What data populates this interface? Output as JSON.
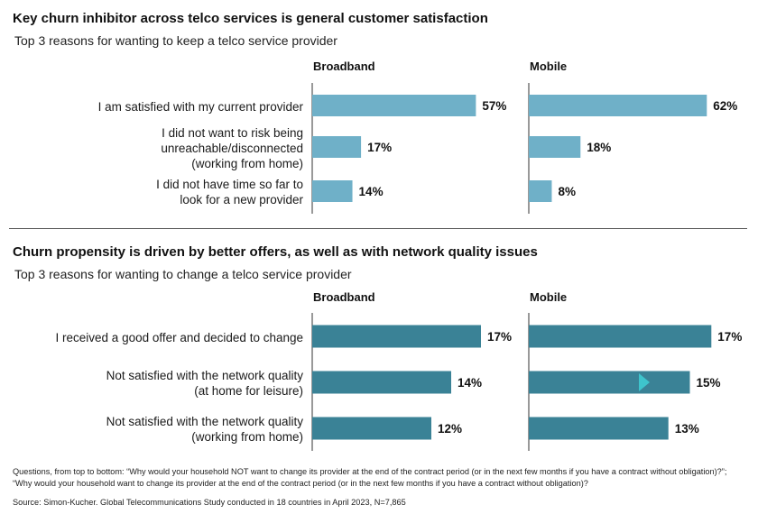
{
  "chart_data": [
    {
      "type": "bar",
      "orientation": "horizontal",
      "title": "Key churn inhibitor across telco services is general customer satisfaction",
      "subtitle": "Top 3 reasons for wanting to keep a telco service provider",
      "categories": [
        "I am satisfied with my current provider",
        "I did not want to risk being unreachable/disconnected (working from home)",
        "I did not have time so far to look for a new provider"
      ],
      "category_lines": [
        [
          "I am satisfied with my current provider"
        ],
        [
          "I did not want to risk being",
          "unreachable/disconnected",
          "(working from home)"
        ],
        [
          "I did not have time so far to",
          "look for a new provider"
        ]
      ],
      "series": [
        {
          "name": "Broadband",
          "values": [
            57,
            17,
            14
          ]
        },
        {
          "name": "Mobile",
          "values": [
            62,
            18,
            8
          ]
        }
      ],
      "value_suffix": "%",
      "color": "#6fb0c8",
      "xlim": [
        0,
        62
      ]
    },
    {
      "type": "bar",
      "orientation": "horizontal",
      "title": "Churn propensity is driven by better offers, as well as with network quality issues",
      "subtitle": "Top 3 reasons for wanting to change a telco service provider",
      "categories": [
        "I received a good offer and decided to change",
        "Not satisfied with the network quality (at home for leisure)",
        "Not satisfied with the network quality (working from home)"
      ],
      "category_lines": [
        [
          "I received a good offer and decided to change"
        ],
        [
          "Not satisfied with the network quality",
          "(at home for leisure)"
        ],
        [
          "Not satisfied with the network quality",
          "(working from home)"
        ]
      ],
      "series": [
        {
          "name": "Broadband",
          "values": [
            17,
            14,
            12
          ]
        },
        {
          "name": "Mobile",
          "values": [
            17,
            15,
            13
          ]
        }
      ],
      "value_suffix": "%",
      "color": "#3a8296",
      "marker_color": "#3ec4cc",
      "xlim": [
        0,
        17
      ]
    }
  ],
  "footnote": {
    "questions": "Questions, from top to bottom: “Why would your household NOT want to change its provider at the end of the contract period (or in the next few months if you have a contract without obligation)?”; “Why would your household want to change its provider at the end of the contract period (or in the next few months if you have a contract without obligation)?",
    "source": "Source: Simon-Kucher. Global Telecommunications Study conducted in 18 countries in April 2023, N=7,865"
  }
}
